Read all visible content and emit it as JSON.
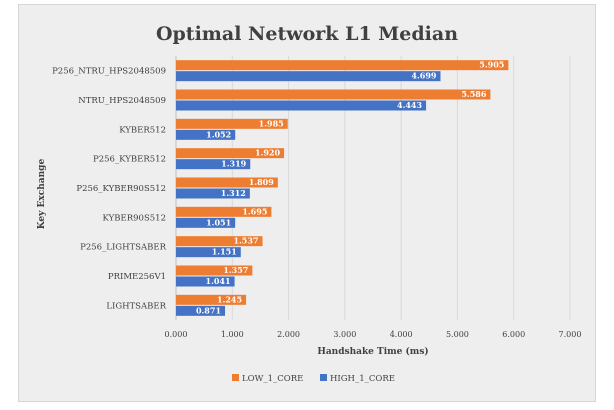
{
  "chart_data": {
    "type": "bar",
    "orientation": "horizontal",
    "title": "Optimal Network L1 Median",
    "xlabel": "Handshake Time (ms)",
    "ylabel": "Key Exchange",
    "xlim": [
      0,
      7
    ],
    "xticks": [
      "0.000",
      "1.000",
      "2.000",
      "3.000",
      "4.000",
      "5.000",
      "6.000",
      "7.000"
    ],
    "grid": true,
    "legend_position": "bottom",
    "categories": [
      "P256_NTRU_HPS2048509",
      "NTRU_HPS2048509",
      "KYBER512",
      "P256_KYBER512",
      "P256_KYBER90S512",
      "KYBER90S512",
      "P256_LIGHTSABER",
      "PRIME256V1",
      "LIGHTSABER"
    ],
    "series": [
      {
        "name": "LOW_1_CORE",
        "color": "#ed7d31",
        "values": [
          5.905,
          5.586,
          1.985,
          1.92,
          1.809,
          1.695,
          1.537,
          1.357,
          1.245
        ],
        "labels": [
          "5.905",
          "5.586",
          "1.985",
          "1.920",
          "1.809",
          "1.695",
          "1.537",
          "1.357",
          "1.245"
        ]
      },
      {
        "name": "HIGH_1_CORE",
        "color": "#4472c4",
        "values": [
          4.699,
          4.443,
          1.052,
          1.319,
          1.312,
          1.051,
          1.151,
          1.041,
          0.871
        ],
        "labels": [
          "4.699",
          "4.443",
          "1.052",
          "1.319",
          "1.312",
          "1.051",
          "1.151",
          "1.041",
          "0.871"
        ]
      }
    ]
  }
}
